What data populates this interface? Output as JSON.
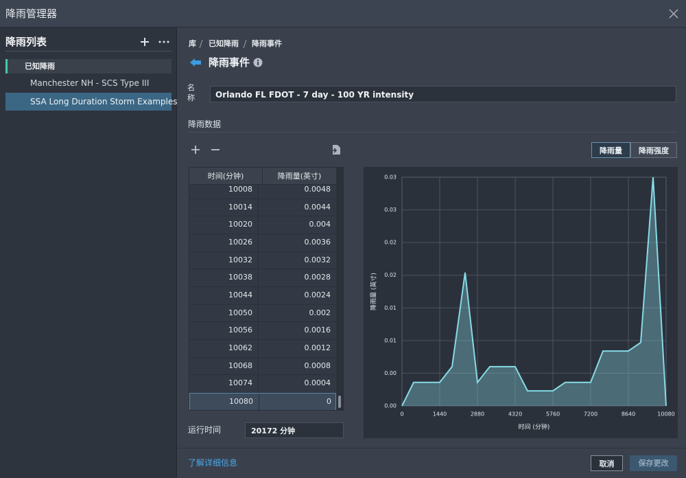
{
  "window": {
    "title": "降雨管理器"
  },
  "sidebar": {
    "title": "降雨列表",
    "group": "已知降雨",
    "items": [
      "Manchester NH - SCS Type III",
      "SSA Long Duration Storm Examples"
    ]
  },
  "breadcrumb": [
    "库",
    "已知降雨",
    "降雨事件"
  ],
  "header": {
    "title": "降雨事件"
  },
  "form": {
    "name_label": "名称",
    "name_value": "Orlando FL FDOT - 7 day - 100 YR intensity",
    "section": "降雨数据",
    "toggle": [
      "降雨量",
      "降雨强度"
    ],
    "runtime_label": "运行时间",
    "runtime_value": "20172 分钟"
  },
  "table": {
    "columns": [
      "时间(分钟)",
      "降雨量(英寸)"
    ],
    "rows": [
      [
        10008,
        0.0048
      ],
      [
        10014,
        0.0044
      ],
      [
        10020,
        0.004
      ],
      [
        10026,
        0.0036
      ],
      [
        10032,
        0.0032
      ],
      [
        10038,
        0.0028
      ],
      [
        10044,
        0.0024
      ],
      [
        10050,
        0.002
      ],
      [
        10056,
        0.0016
      ],
      [
        10062,
        0.0012
      ],
      [
        10068,
        0.0008
      ],
      [
        10074,
        0.0004
      ],
      [
        10080,
        0
      ]
    ]
  },
  "chart_data": {
    "type": "area",
    "x_label": "时间 (分钟)",
    "y_label": "降雨量 (英寸)",
    "x": [
      0,
      445,
      1440,
      1911,
      2409,
      2880,
      3351,
      4320,
      4791,
      5760,
      6231,
      7200,
      7671,
      8640,
      9111,
      9583,
      10080
    ],
    "values": [
      0,
      0.0036,
      0.0036,
      0.006,
      0.0204,
      0.0036,
      0.006,
      0.006,
      0.0023,
      0.0023,
      0.0036,
      0.0036,
      0.0084,
      0.0084,
      0.0097,
      0.035,
      0
    ],
    "color": "#86dbe6",
    "grid": true,
    "xlim": [
      0,
      10080
    ],
    "xticks": [
      0,
      1440,
      2880,
      4320,
      5760,
      7200,
      8640,
      10080
    ],
    "ylim": [
      0,
      0.035
    ],
    "yticks": [
      {
        "value": 0,
        "label": "0.00"
      },
      {
        "value": 0.005,
        "label": "0.00"
      },
      {
        "value": 0.01,
        "label": "0.01"
      },
      {
        "value": 0.015,
        "label": "0.01"
      },
      {
        "value": 0.02,
        "label": "0.02"
      },
      {
        "value": 0.025,
        "label": "0.02"
      },
      {
        "value": 0.03,
        "label": "0.03"
      },
      {
        "value": 0.035,
        "label": "0.03"
      }
    ]
  },
  "footer": {
    "link": "了解详细信息",
    "buttons": [
      "取消",
      "保存更改"
    ]
  }
}
